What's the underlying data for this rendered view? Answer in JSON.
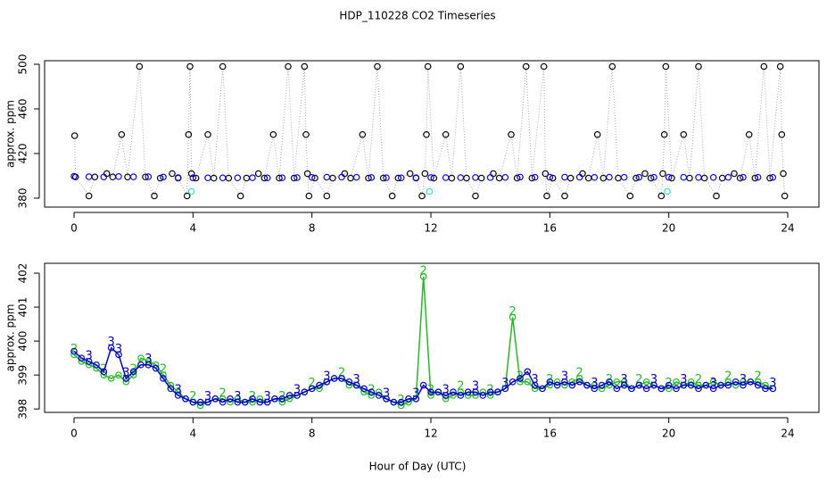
{
  "title": "HDP_110228  CO2 Timeseries",
  "xlabel": "Hour of Day (UTC)",
  "chart_data": [
    {
      "type": "scatter",
      "ylabel": "approx. ppm",
      "xlim": [
        -0.99,
        25.05
      ],
      "ylim": [
        372,
        503.2
      ],
      "xticks": [
        0,
        4,
        8,
        12,
        16,
        20,
        24
      ],
      "yticks": [
        380,
        420,
        460,
        500
      ],
      "series": [
        {
          "color": "#000000",
          "line_color": "#aaaaaa",
          "line": "dotted",
          "x": [
            0.02,
            0.05,
            0.5,
            0.7,
            1.1,
            1.3,
            1.6,
            1.8,
            2.2,
            2.4,
            2.7,
            2.9,
            3.3,
            3.5,
            3.8,
            3.85,
            3.9,
            3.95,
            4.1,
            4.5,
            4.7,
            5.0,
            5.2,
            5.6,
            5.8,
            6.2,
            6.4,
            6.7,
            6.9,
            7.2,
            7.4,
            7.75,
            7.8,
            7.85,
            7.9,
            8.1,
            8.5,
            8.7,
            9.1,
            9.3,
            9.7,
            9.9,
            10.2,
            10.4,
            10.7,
            10.9,
            11.3,
            11.5,
            11.7,
            11.8,
            11.85,
            11.9,
            12.1,
            12.5,
            12.7,
            13.0,
            13.2,
            13.5,
            13.7,
            14.1,
            14.3,
            14.7,
            14.9,
            15.2,
            15.4,
            15.8,
            15.85,
            15.9,
            16.1,
            16.5,
            16.7,
            17.1,
            17.3,
            17.6,
            17.8,
            18.1,
            18.3,
            18.7,
            18.9,
            19.2,
            19.4,
            19.75,
            19.8,
            19.85,
            19.9,
            20.1,
            20.5,
            20.7,
            21.0,
            21.2,
            21.6,
            21.8,
            22.2,
            22.4,
            22.7,
            22.9,
            23.2,
            23.4,
            23.75,
            23.8,
            23.85,
            23.9
          ],
          "values": [
            436,
            399,
            382,
            399,
            402,
            399,
            437,
            399,
            498,
            399,
            382,
            398,
            402,
            398,
            382,
            437,
            498,
            402,
            398,
            437,
            398,
            498,
            398,
            382,
            398,
            402,
            398,
            437,
            398,
            498,
            398,
            498,
            437,
            402,
            382,
            398,
            382,
            398,
            402,
            398,
            437,
            398,
            498,
            398,
            382,
            398,
            402,
            398,
            382,
            402,
            437,
            498,
            398,
            437,
            398,
            498,
            398,
            382,
            398,
            402,
            398,
            437,
            398,
            498,
            398,
            498,
            402,
            382,
            398,
            382,
            398,
            402,
            398,
            437,
            398,
            498,
            398,
            382,
            398,
            402,
            398,
            382,
            402,
            437,
            498,
            398,
            437,
            398,
            498,
            398,
            382,
            398,
            402,
            398,
            437,
            398,
            498,
            398,
            498,
            437,
            402,
            382
          ]
        },
        {
          "color": "#0000ff",
          "x": [
            0,
            0.5,
            1,
            1.5,
            2,
            2.5,
            3,
            3.5,
            4,
            4.5,
            5,
            5.5,
            6,
            6.5,
            7,
            7.5,
            8,
            8.5,
            9,
            9.5,
            10,
            10.5,
            11,
            11.5,
            12,
            12.5,
            13,
            13.5,
            14,
            14.5,
            15,
            15.5,
            16,
            16.5,
            17,
            17.5,
            18,
            18.5,
            19,
            19.5,
            20,
            20.5,
            21,
            21.5,
            22,
            22.5,
            23,
            23.5
          ],
          "values": [
            399.6,
            399.2,
            399,
            399.4,
            399.1,
            399.2,
            398.9,
            398.4,
            398.2,
            398.2,
            398.2,
            398.2,
            398.3,
            398.2,
            398.3,
            398.4,
            398.6,
            398.8,
            398.9,
            398.7,
            398.5,
            398.3,
            398.2,
            398.3,
            398.5,
            398.4,
            398.4,
            398.5,
            398.5,
            398.6,
            398.9,
            398.7,
            398.8,
            398.8,
            398.8,
            398.6,
            398.8,
            398.7,
            398.7,
            398.7,
            398.7,
            398.7,
            398.6,
            398.6,
            398.7,
            398.7,
            398.7,
            398.6
          ]
        },
        {
          "color": "#33dddd",
          "x": [
            3.95,
            11.95,
            19.95
          ],
          "values": [
            386,
            386,
            386
          ]
        }
      ]
    },
    {
      "type": "scatter",
      "ylabel": "approx. ppm",
      "xlim": [
        -0.99,
        25.05
      ],
      "ylim": [
        397.9,
        402.29
      ],
      "xticks": [
        0,
        4,
        8,
        12,
        16,
        20,
        24
      ],
      "yticks": [
        398,
        399,
        400,
        401,
        402
      ],
      "x": [
        0,
        0.25,
        0.5,
        0.75,
        1,
        1.25,
        1.5,
        1.75,
        2,
        2.25,
        2.5,
        2.75,
        3,
        3.25,
        3.5,
        3.75,
        4,
        4.25,
        4.5,
        4.75,
        5,
        5.25,
        5.5,
        5.75,
        6,
        6.25,
        6.5,
        6.75,
        7,
        7.25,
        7.5,
        7.75,
        8,
        8.25,
        8.5,
        8.75,
        9,
        9.25,
        9.5,
        9.75,
        10,
        10.25,
        10.5,
        10.75,
        11,
        11.25,
        11.5,
        11.75,
        12,
        12.25,
        12.5,
        12.75,
        13,
        13.25,
        13.5,
        13.75,
        14,
        14.25,
        14.5,
        14.75,
        15,
        15.25,
        15.5,
        15.75,
        16,
        16.25,
        16.5,
        16.75,
        17,
        17.25,
        17.5,
        17.75,
        18,
        18.25,
        18.5,
        18.75,
        19,
        19.25,
        19.5,
        19.75,
        20,
        20.25,
        20.5,
        20.75,
        21,
        21.25,
        21.5,
        21.75,
        22,
        22.25,
        22.5,
        22.75,
        23,
        23.25,
        23.5
      ],
      "series": [
        {
          "name": "2",
          "color": "#22bb22",
          "values": [
            399.6,
            399.4,
            399.3,
            399.2,
            399.0,
            398.9,
            399.0,
            398.8,
            399.0,
            399.5,
            399.4,
            399.3,
            399.0,
            398.7,
            398.5,
            398.3,
            398.2,
            398.1,
            398.2,
            398.3,
            398.3,
            398.2,
            398.3,
            398.2,
            398.2,
            398.3,
            398.2,
            398.3,
            398.2,
            398.3,
            398.4,
            398.5,
            398.6,
            398.6,
            398.8,
            398.9,
            398.9,
            398.7,
            398.7,
            398.5,
            398.4,
            398.5,
            398.3,
            398.2,
            398.1,
            398.2,
            398.3,
            401.9,
            398.4,
            398.5,
            398.3,
            398.4,
            398.5,
            398.4,
            398.4,
            398.5,
            398.4,
            398.5,
            398.6,
            400.7,
            398.8,
            398.8,
            398.6,
            398.6,
            398.7,
            398.8,
            398.7,
            398.8,
            398.9,
            398.7,
            398.7,
            398.6,
            398.7,
            398.8,
            398.8,
            398.6,
            398.7,
            398.8,
            398.7,
            398.6,
            398.6,
            398.8,
            398.7,
            398.8,
            398.7,
            398.7,
            398.8,
            398.7,
            398.8,
            398.7,
            398.8,
            398.8,
            398.8,
            398.7,
            398.6
          ]
        },
        {
          "name": "3",
          "color": "#0000cc",
          "values": [
            399.7,
            399.5,
            399.4,
            399.3,
            399.1,
            399.8,
            399.6,
            398.9,
            399.1,
            399.3,
            399.3,
            399.2,
            398.9,
            398.6,
            398.4,
            398.3,
            398.2,
            398.2,
            398.2,
            398.3,
            398.2,
            398.3,
            398.2,
            398.2,
            398.3,
            398.2,
            398.2,
            398.3,
            398.3,
            398.4,
            398.4,
            398.5,
            398.6,
            398.7,
            398.8,
            398.9,
            398.9,
            398.8,
            398.7,
            398.6,
            398.5,
            398.4,
            398.3,
            398.2,
            398.2,
            398.3,
            398.3,
            398.7,
            398.5,
            398.5,
            398.4,
            398.5,
            398.4,
            398.5,
            398.5,
            398.4,
            398.5,
            398.5,
            398.6,
            398.8,
            398.9,
            399.1,
            398.7,
            398.6,
            398.8,
            398.7,
            398.8,
            398.7,
            398.8,
            398.7,
            398.6,
            398.7,
            398.8,
            398.6,
            398.7,
            398.6,
            398.7,
            398.6,
            398.7,
            398.6,
            398.7,
            398.6,
            398.7,
            398.7,
            398.6,
            398.7,
            398.6,
            398.7,
            398.7,
            398.8,
            398.7,
            398.8,
            398.7,
            398.6,
            398.6
          ]
        }
      ]
    }
  ]
}
